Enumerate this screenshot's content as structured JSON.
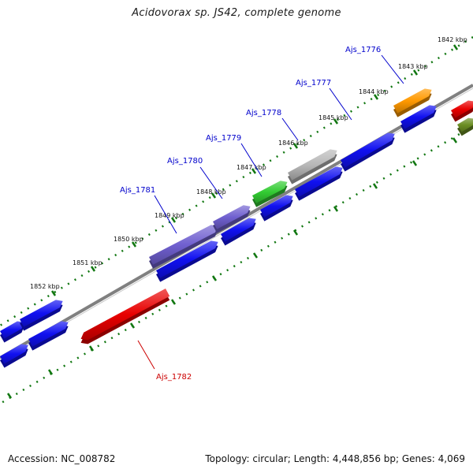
{
  "title": "Acidovorax sp. JS42, complete genome",
  "footer": {
    "accession": "Accession: NC_008782",
    "summary": "Topology: circular; Length: 4,448,856 bp; Genes: 4,069"
  },
  "axis": {
    "ticks": [
      "1842 kbp",
      "1843 kbp",
      "1844 kbp",
      "1845 kbp",
      "1846 kbp",
      "1847 kbp",
      "1848 kbp",
      "1849 kbp",
      "1850 kbp",
      "1851 kbp",
      "1852 kbp"
    ]
  },
  "colors": {
    "blue": "#1010f0",
    "red": "#e80000",
    "purple": "#7060d0",
    "green": "#33cc33",
    "gray": "#b8b8b8",
    "orange": "#ff9900",
    "olive": "#6b8e23",
    "backbone": "#808080",
    "tick": "#117711",
    "label_blue": "#0000cc",
    "label_red": "#cc0000"
  },
  "genes": [
    {
      "name": "Ajs_1776",
      "color": "orange",
      "label_color": "label_blue"
    },
    {
      "name": "Ajs_1777",
      "color": "blue",
      "label_color": "label_blue"
    },
    {
      "name": "Ajs_1778",
      "color": "gray",
      "label_color": "label_blue"
    },
    {
      "name": "Ajs_1779",
      "color": "green",
      "label_color": "label_blue"
    },
    {
      "name": "Ajs_1780",
      "color": "purple",
      "label_color": "label_blue"
    },
    {
      "name": "Ajs_1781",
      "color": "purple",
      "label_color": "label_blue"
    },
    {
      "name": "Ajs_1782",
      "color": "red",
      "label_color": "label_red"
    }
  ]
}
